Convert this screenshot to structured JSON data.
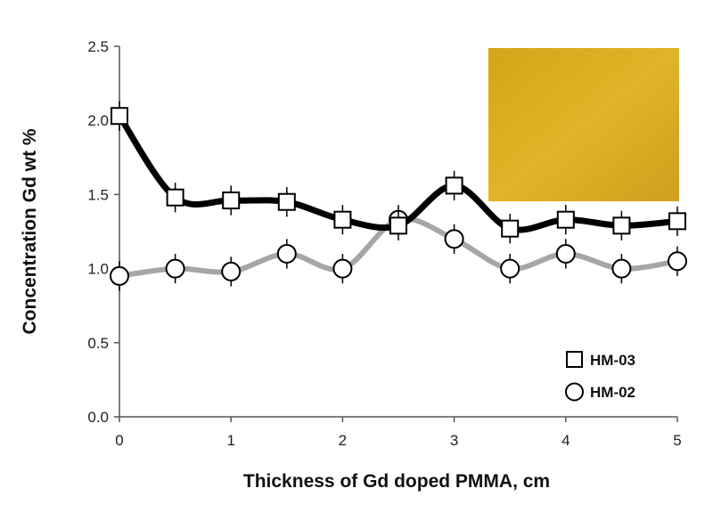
{
  "chart_data": {
    "type": "line",
    "xlabel": "Thickness  of Gd doped PMMA, cm",
    "ylabel": "Concentration Gd wt %",
    "xlim": [
      0,
      5
    ],
    "ylim": [
      0,
      2.5
    ],
    "xticks": [
      "0",
      "1",
      "2",
      "3",
      "4",
      "5"
    ],
    "yticks": [
      "0.0",
      "0.5",
      "1.0",
      "1.5",
      "2.0",
      "2.5"
    ],
    "grid": false,
    "legend_position": "bottom-right",
    "inset_photo_color": "#d9ac20",
    "x": [
      0,
      0.5,
      1,
      1.5,
      2,
      2.5,
      3,
      3.5,
      4,
      4.5,
      5
    ],
    "series": [
      {
        "name": "HM-03",
        "marker": "square",
        "line_color": "#000000",
        "values": [
          2.03,
          1.48,
          1.46,
          1.45,
          1.33,
          1.29,
          1.56,
          1.27,
          1.33,
          1.29,
          1.32
        ],
        "error": 0.1
      },
      {
        "name": "HM-02",
        "marker": "circle",
        "line_color": "#a6a6a6",
        "values": [
          0.95,
          1.0,
          0.98,
          1.1,
          1.0,
          1.33,
          1.2,
          1.0,
          1.1,
          1.0,
          1.05
        ],
        "error": 0.1
      }
    ]
  }
}
